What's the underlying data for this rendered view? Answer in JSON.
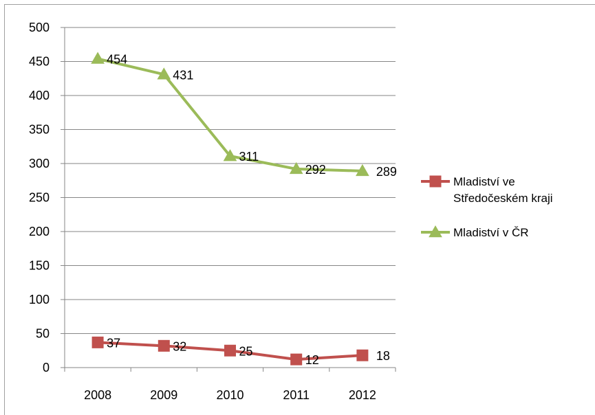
{
  "chart_data": {
    "type": "line",
    "categories": [
      "2008",
      "2009",
      "2010",
      "2011",
      "2012"
    ],
    "series": [
      {
        "name": "Mladiství ve Středočeském kraji",
        "legend_lines": [
          "Mladiství ve",
          "Středočeském kraji"
        ],
        "values": [
          37,
          32,
          25,
          12,
          18
        ],
        "color": "#c0504d",
        "marker": "square"
      },
      {
        "name": "Mladiství v ČR",
        "legend_lines": [
          "Mladiství v ČR"
        ],
        "values": [
          454,
          431,
          311,
          292,
          289
        ],
        "color": "#9bbb59",
        "marker": "triangle"
      }
    ],
    "y_ticks": [
      "0",
      "50",
      "100",
      "150",
      "200",
      "250",
      "300",
      "350",
      "400",
      "450",
      "500"
    ],
    "ylim": [
      0,
      500
    ],
    "grid": true,
    "legend_position": "right",
    "data_labels": true
  }
}
